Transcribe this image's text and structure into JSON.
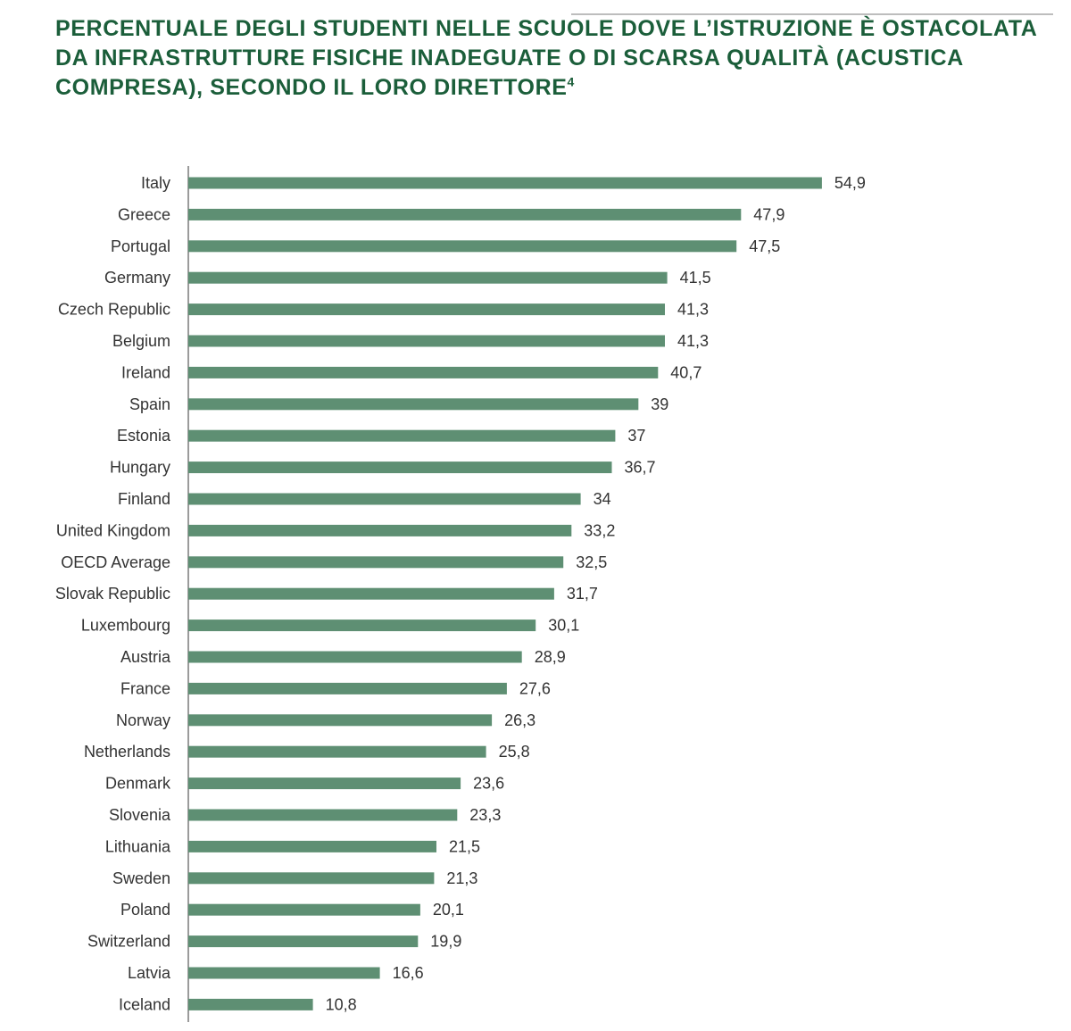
{
  "title": {
    "text": "PERCENTUALE DEGLI STUDENTI NELLE SCUOLE DOVE L’ISTRUZIONE È OSTACOLATA DA INFRASTRUTTURE FISICHE INADEGUATE O DI SCARSA QUALITÀ (ACUSTICA COMPRESA), SECONDO IL LORO DIRETTORE",
    "footnote": "4"
  },
  "colors": {
    "title": "#1b5e3a",
    "bar": "#5e8f73",
    "axis": "#7a7a7a",
    "text": "#333333"
  },
  "chart_data": {
    "type": "bar",
    "orientation": "horizontal",
    "title": "PERCENTUALE DEGLI STUDENTI NELLE SCUOLE DOVE L’ISTRUZIONE È OSTACOLATA DA INFRASTRUTTURE FISICHE INADEGUATE O DI SCARSA QUALITÀ (ACUSTICA COMPRESA), SECONDO IL LORO DIRETTORE",
    "xlabel": "",
    "ylabel": "",
    "grid": false,
    "legend": "none",
    "xlim": [
      0,
      60
    ],
    "decimal_separator": ",",
    "categories": [
      "Italy",
      "Greece",
      "Portugal",
      "Germany",
      "Czech Republic",
      "Belgium",
      "Ireland",
      "Spain",
      "Estonia",
      "Hungary",
      "Finland",
      "United Kingdom",
      "OECD Average",
      "Slovak Republic",
      "Luxembourg",
      "Austria",
      "France",
      "Norway",
      "Netherlands",
      "Denmark",
      "Slovenia",
      "Lithuania",
      "Sweden",
      "Poland",
      "Switzerland",
      "Latvia",
      "Iceland"
    ],
    "values": [
      54.9,
      47.9,
      47.5,
      41.5,
      41.3,
      41.3,
      40.7,
      39,
      37,
      36.7,
      34,
      33.2,
      32.5,
      31.7,
      30.1,
      28.9,
      27.6,
      26.3,
      25.8,
      23.6,
      23.3,
      21.5,
      21.3,
      20.1,
      19.9,
      16.6,
      10.8
    ]
  }
}
